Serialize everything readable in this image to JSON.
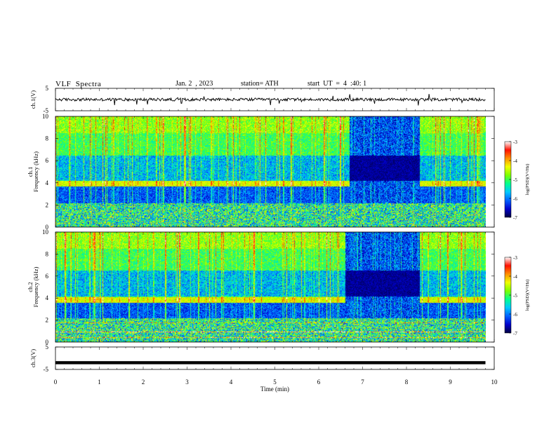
{
  "header": {
    "title": "VLF  Spectra",
    "date": "Jan. 2  , 2023",
    "station": "station= ATH",
    "start_ut": "start  UT  =  4  :40: 1"
  },
  "chart_data": [
    {
      "type": "line",
      "panel": "ch1-waveform",
      "ylabel": "ch.1(V)",
      "ylim": [
        -5,
        5
      ],
      "yticks": [
        "5",
        "-5"
      ],
      "xlim": [
        0,
        10
      ],
      "series": [
        {
          "x": [
            0,
            1,
            2,
            3,
            4,
            5,
            6,
            7,
            8,
            9,
            9.8
          ],
          "values": [
            0,
            0,
            0,
            0,
            0,
            0,
            0,
            0,
            0,
            0,
            0
          ]
        }
      ]
    },
    {
      "type": "heatmap",
      "panel": "ch1-spectrogram",
      "ylabel": "ch.1\nFrequency  (kHz)",
      "ylim": [
        0,
        10
      ],
      "yticks": [
        "0",
        "2",
        "4",
        "6",
        "8",
        "10"
      ],
      "xlim": [
        0,
        10
      ],
      "data_end_min": 9.8,
      "strong_band_khz": [
        3.7,
        4.2
      ],
      "dark_interval_min": [
        6.7,
        8.3
      ],
      "colorbar": {
        "label": "log(PSD)(V²/Hz)",
        "ticks": [
          "-3",
          "-4",
          "-5",
          "-6",
          "-7"
        ],
        "range": [
          -7,
          -3
        ]
      }
    },
    {
      "type": "heatmap",
      "panel": "ch2-spectrogram",
      "ylabel": "ch.2\nFrequency  (kHz)",
      "ylim": [
        0,
        10
      ],
      "yticks": [
        "0",
        "2",
        "4",
        "6",
        "8",
        "10"
      ],
      "xlim": [
        0,
        10
      ],
      "data_end_min": 9.8,
      "strong_band_khz": [
        3.6,
        4.1
      ],
      "dark_interval_min": [
        6.6,
        8.3
      ],
      "colorbar": {
        "label": "log(PSD)(V²/Hz)",
        "ticks": [
          "-3",
          "-4",
          "-5",
          "-6",
          "-7"
        ],
        "range": [
          -7,
          -3
        ]
      }
    },
    {
      "type": "line",
      "panel": "ch3-waveform",
      "ylabel": "ch.3(V)",
      "ylim": [
        -5,
        5
      ],
      "yticks": [
        "5",
        "-5"
      ],
      "xlim": [
        0,
        10
      ],
      "series": [
        {
          "x": [
            0,
            9.8
          ],
          "values": [
            -2,
            -2
          ]
        }
      ]
    }
  ],
  "x_axis": {
    "label": "Time  (min)",
    "ticks": [
      "0",
      "1",
      "2",
      "3",
      "4",
      "5",
      "6",
      "7",
      "8",
      "9",
      "10"
    ]
  },
  "colors": {
    "trace": "#000000",
    "colormap": [
      "#000040",
      "#0000cc",
      "#0060ff",
      "#00c8ff",
      "#00ff90",
      "#7cff00",
      "#f0ff00",
      "#ff9000",
      "#ff1000",
      "#ffffff"
    ]
  }
}
